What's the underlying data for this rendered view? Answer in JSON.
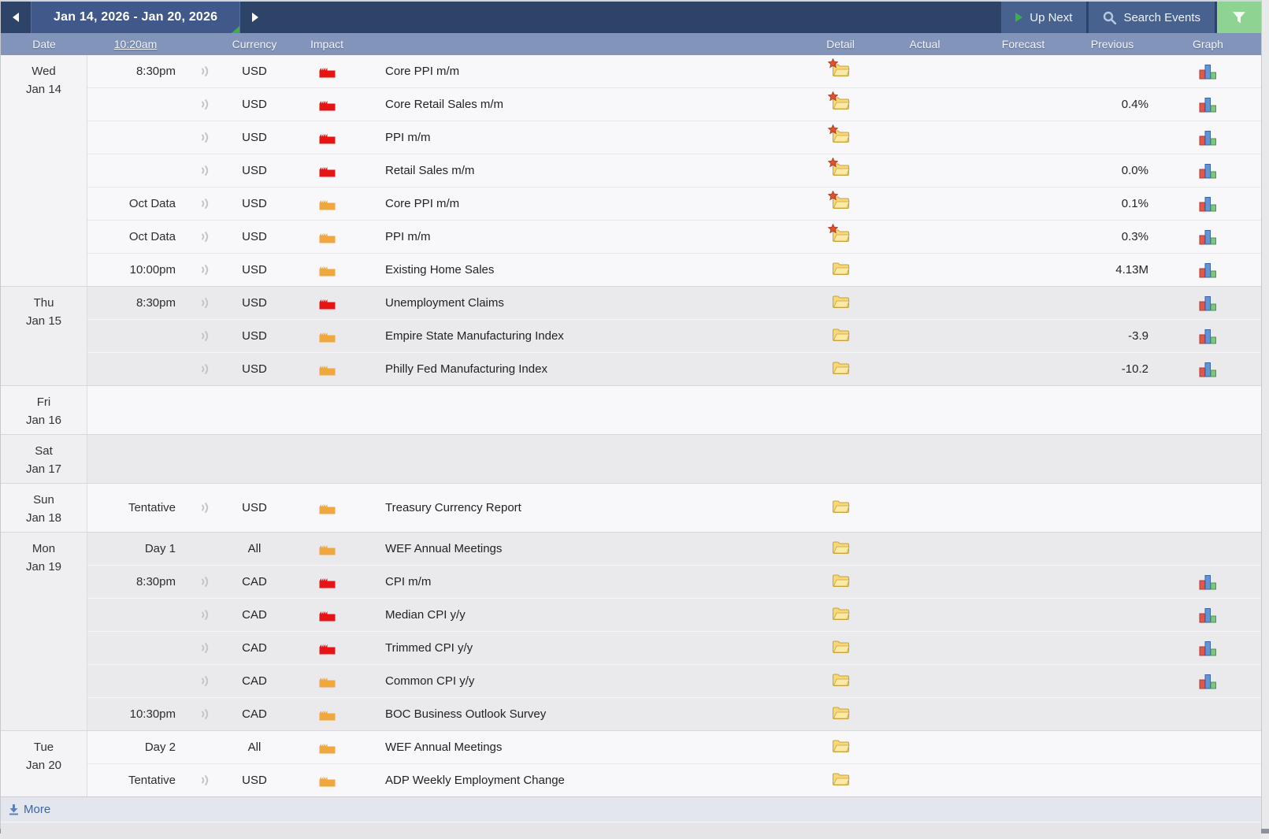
{
  "toolbar": {
    "date_range": "Jan 14, 2026 - Jan 20, 2026",
    "up_next_label": "Up Next",
    "search_events_label": "Search Events"
  },
  "header": {
    "date": "Date",
    "time": "10:20am",
    "currency": "Currency",
    "impact": "Impact",
    "detail": "Detail",
    "actual": "Actual",
    "forecast": "Forecast",
    "previous": "Previous",
    "graph": "Graph"
  },
  "footer": {
    "more_label": "More"
  },
  "colors": {
    "topbar_navy": "#2e4368",
    "button_blue": "#47628f",
    "button_blue2": "#40598a",
    "header_blue": "#8294ba",
    "filter_green": "#8fd392",
    "up_green": "#3fae49",
    "impact_high": "#e51515",
    "impact_medium": "#efa73f",
    "link_blue": "#3b66a0",
    "folder_yellow": "#f6d878",
    "star_red": "#dd5230"
  },
  "days": [
    {
      "weekday": "Wed",
      "date": "Jan 14",
      "shade": "light",
      "tall": false,
      "events": [
        {
          "time": "8:30pm",
          "alert": true,
          "currency": "USD",
          "impact": "high",
          "title": "Core PPI m/m",
          "detail": "folder-new",
          "actual": "",
          "forecast": "",
          "previous": "",
          "graph": true
        },
        {
          "time": "",
          "alert": true,
          "currency": "USD",
          "impact": "high",
          "title": "Core Retail Sales m/m",
          "detail": "folder-new",
          "actual": "",
          "forecast": "",
          "previous": "0.4%",
          "graph": true
        },
        {
          "time": "",
          "alert": true,
          "currency": "USD",
          "impact": "high",
          "title": "PPI m/m",
          "detail": "folder-new",
          "actual": "",
          "forecast": "",
          "previous": "",
          "graph": true
        },
        {
          "time": "",
          "alert": true,
          "currency": "USD",
          "impact": "high",
          "title": "Retail Sales m/m",
          "detail": "folder-new",
          "actual": "",
          "forecast": "",
          "previous": "0.0%",
          "graph": true
        },
        {
          "time": "Oct Data",
          "alert": true,
          "currency": "USD",
          "impact": "medium",
          "title": "Core PPI m/m",
          "detail": "folder-new",
          "actual": "",
          "forecast": "",
          "previous": "0.1%",
          "graph": true
        },
        {
          "time": "Oct Data",
          "alert": true,
          "currency": "USD",
          "impact": "medium",
          "title": "PPI m/m",
          "detail": "folder-new",
          "actual": "",
          "forecast": "",
          "previous": "0.3%",
          "graph": true
        },
        {
          "time": "10:00pm",
          "alert": true,
          "currency": "USD",
          "impact": "medium",
          "title": "Existing Home Sales",
          "detail": "folder",
          "actual": "",
          "forecast": "",
          "previous": "4.13M",
          "graph": true
        }
      ]
    },
    {
      "weekday": "Thu",
      "date": "Jan 15",
      "shade": "dark",
      "tall": false,
      "events": [
        {
          "time": "8:30pm",
          "alert": true,
          "currency": "USD",
          "impact": "high",
          "title": "Unemployment Claims",
          "detail": "folder",
          "actual": "",
          "forecast": "",
          "previous": "",
          "graph": true
        },
        {
          "time": "",
          "alert": true,
          "currency": "USD",
          "impact": "medium",
          "title": "Empire State Manufacturing Index",
          "detail": "folder",
          "actual": "",
          "forecast": "",
          "previous": "-3.9",
          "graph": true
        },
        {
          "time": "",
          "alert": true,
          "currency": "USD",
          "impact": "medium",
          "title": "Philly Fed Manufacturing Index",
          "detail": "folder",
          "actual": "",
          "forecast": "",
          "previous": "-10.2",
          "graph": true
        }
      ]
    },
    {
      "weekday": "Fri",
      "date": "Jan 16",
      "shade": "light",
      "tall": true,
      "events": []
    },
    {
      "weekday": "Sat",
      "date": "Jan 17",
      "shade": "dark",
      "tall": true,
      "events": []
    },
    {
      "weekday": "Sun",
      "date": "Jan 18",
      "shade": "light",
      "tall": true,
      "events": [
        {
          "time": "Tentative",
          "alert": true,
          "currency": "USD",
          "impact": "medium",
          "title": "Treasury Currency Report",
          "detail": "folder",
          "actual": "",
          "forecast": "",
          "previous": "",
          "graph": false
        }
      ]
    },
    {
      "weekday": "Mon",
      "date": "Jan 19",
      "shade": "dark",
      "tall": false,
      "events": [
        {
          "time": "Day 1",
          "alert": false,
          "currency": "All",
          "impact": "medium",
          "title": "WEF Annual Meetings",
          "detail": "folder",
          "actual": "",
          "forecast": "",
          "previous": "",
          "graph": false
        },
        {
          "time": "8:30pm",
          "alert": true,
          "currency": "CAD",
          "impact": "high",
          "title": "CPI m/m",
          "detail": "folder",
          "actual": "",
          "forecast": "",
          "previous": "",
          "graph": true
        },
        {
          "time": "",
          "alert": true,
          "currency": "CAD",
          "impact": "high",
          "title": "Median CPI y/y",
          "detail": "folder",
          "actual": "",
          "forecast": "",
          "previous": "",
          "graph": true
        },
        {
          "time": "",
          "alert": true,
          "currency": "CAD",
          "impact": "high",
          "title": "Trimmed CPI y/y",
          "detail": "folder",
          "actual": "",
          "forecast": "",
          "previous": "",
          "graph": true
        },
        {
          "time": "",
          "alert": true,
          "currency": "CAD",
          "impact": "medium",
          "title": "Common CPI y/y",
          "detail": "folder",
          "actual": "",
          "forecast": "",
          "previous": "",
          "graph": true
        },
        {
          "time": "10:30pm",
          "alert": true,
          "currency": "CAD",
          "impact": "medium",
          "title": "BOC Business Outlook Survey",
          "detail": "folder",
          "actual": "",
          "forecast": "",
          "previous": "",
          "graph": false
        }
      ]
    },
    {
      "weekday": "Tue",
      "date": "Jan 20",
      "shade": "light",
      "tall": false,
      "events": [
        {
          "time": "Day 2",
          "alert": false,
          "currency": "All",
          "impact": "medium",
          "title": "WEF Annual Meetings",
          "detail": "folder",
          "actual": "",
          "forecast": "",
          "previous": "",
          "graph": false
        },
        {
          "time": "Tentative",
          "alert": true,
          "currency": "USD",
          "impact": "medium",
          "title": "ADP Weekly Employment Change",
          "detail": "folder",
          "actual": "",
          "forecast": "",
          "previous": "",
          "graph": false
        }
      ]
    }
  ]
}
